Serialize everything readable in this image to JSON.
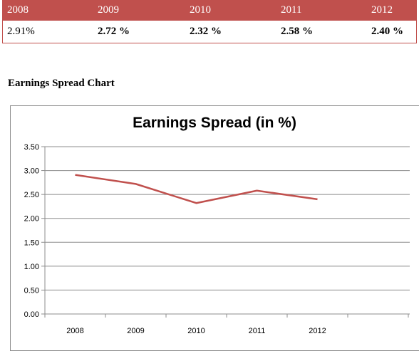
{
  "table": {
    "headers": [
      "2008",
      "2009",
      "2010",
      "2011",
      "2012"
    ],
    "values": [
      "2.91%",
      "2.72 %",
      "2.32 %",
      "2.58 %",
      "2.40 %"
    ]
  },
  "section_title": "Earnings Spread Chart",
  "colors": {
    "header_bg": "#c0504d",
    "series_line": "#c0504d"
  },
  "chart_data": {
    "type": "line",
    "title": "Earnings Spread (in %)",
    "categories": [
      "2008",
      "2009",
      "2010",
      "2011",
      "2012"
    ],
    "series": [
      {
        "values": [
          2.91,
          2.72,
          2.32,
          2.58,
          2.4
        ]
      }
    ],
    "ylim": [
      0,
      3.5
    ],
    "yticks": [
      "0.00",
      "0.50",
      "1.00",
      "1.50",
      "2.00",
      "2.50",
      "3.00",
      "3.50"
    ],
    "grid": true,
    "legend": "none"
  }
}
